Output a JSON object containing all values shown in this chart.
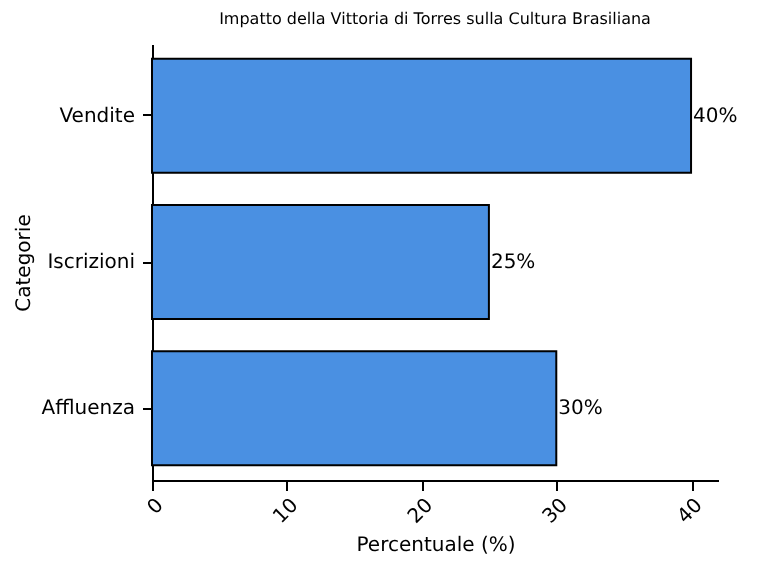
{
  "chart_data": {
    "type": "bar",
    "orientation": "horizontal",
    "title": "Impatto della Vittoria di Torres sulla Cultura Brasiliana",
    "xlabel": "Percentuale (%)",
    "ylabel": "Categorie",
    "categories": [
      "Vendite",
      "Iscrizioni",
      "Affluenza"
    ],
    "values": [
      40,
      25,
      30
    ],
    "color": "#4a90e2",
    "value_labels": [
      "40%",
      "25%",
      "30%"
    ],
    "xlim": [
      0,
      42
    ],
    "xticks": [
      0,
      10,
      20,
      30,
      40
    ],
    "grid": false
  }
}
